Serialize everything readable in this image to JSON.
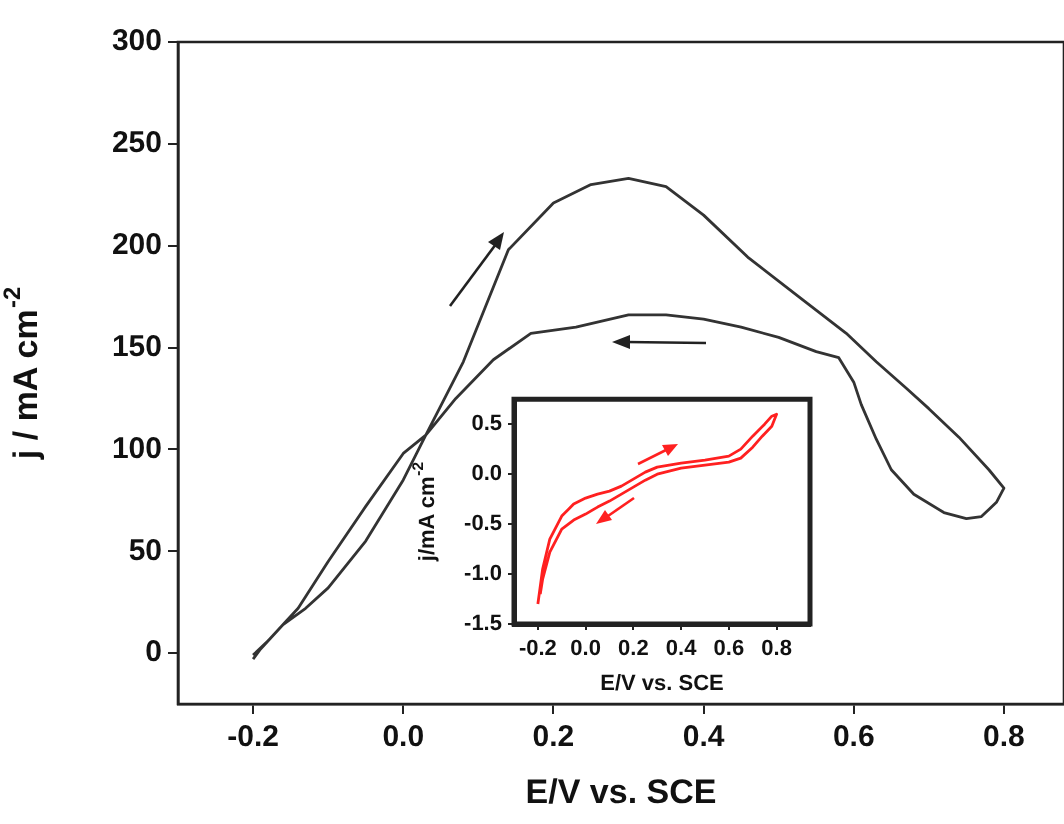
{
  "chart_data": [
    {
      "type": "line",
      "xlabel": "E/V vs. SCE",
      "ylabel": "j / mA cm$^{-2}$",
      "marker": "none",
      "xlim": [
        -0.3,
        0.88
      ],
      "ylim": [
        -25,
        300
      ],
      "xticks": [
        -0.2,
        {
          "value": 0,
          "label": "0.0"
        },
        0.2,
        0.4,
        0.6,
        0.8
      ],
      "yticks": [
        0,
        50,
        100,
        150,
        200,
        250,
        300
      ],
      "series": [
        {
          "color": "#333333",
          "x": [
            -0.2,
            -0.19,
            -0.16,
            -0.13,
            -0.1,
            -0.05,
            0.0,
            0.03,
            0.08,
            0.14,
            0.2,
            0.25,
            0.3,
            0.35,
            0.4,
            0.46,
            0.53,
            0.59,
            0.63,
            0.67,
            0.7,
            0.74,
            0.78,
            0.8,
            0.79,
            0.77,
            0.75,
            0.72,
            0.68,
            0.65,
            0.63,
            0.61,
            0.6,
            0.58,
            0.55,
            0.5,
            0.45,
            0.4,
            0.35,
            0.3,
            0.23,
            0.17,
            0.12,
            0.07,
            0.03,
            0.0,
            -0.05,
            -0.1,
            -0.14,
            -0.16,
            -0.18,
            -0.2
          ],
          "values": [
            -3,
            2,
            14,
            22,
            32,
            55,
            85,
            107,
            143,
            198,
            221,
            230,
            233,
            229,
            215,
            194,
            174,
            157,
            143,
            130,
            120,
            106,
            90,
            81,
            74,
            67,
            66,
            69,
            78,
            90,
            105,
            122,
            133,
            145,
            148,
            155,
            160,
            164,
            166,
            166,
            160,
            157,
            144,
            125,
            107,
            98,
            72,
            45,
            22,
            14,
            6,
            -1
          ]
        }
      ]
    },
    {
      "type": "line",
      "xlabel": "E/V vs. SCE",
      "ylabel": "j/mA cm$^{-2}$",
      "marker": "none",
      "xlim": [
        -0.3,
        0.94
      ],
      "ylim": [
        -1.5,
        0.75
      ],
      "xticks": [
        -0.2,
        {
          "value": 0,
          "label": "0.0"
        },
        0.2,
        0.4,
        0.6,
        0.8
      ],
      "yticks": [
        -1.5,
        {
          "value": -1,
          "label": "-1.0"
        },
        -0.5,
        {
          "value": 0,
          "label": "0.0"
        },
        0.5
      ],
      "series": [
        {
          "color": "#ff2020",
          "x": [
            -0.2,
            -0.18,
            -0.15,
            -0.1,
            -0.05,
            0.0,
            0.05,
            0.1,
            0.15,
            0.2,
            0.25,
            0.3,
            0.4,
            0.5,
            0.6,
            0.65,
            0.7,
            0.75,
            0.78,
            0.8,
            0.78,
            0.74,
            0.7,
            0.65,
            0.6,
            0.5,
            0.4,
            0.3,
            0.25,
            0.2,
            0.15,
            0.1,
            0.05,
            0.0,
            -0.05,
            -0.1,
            -0.15,
            -0.18,
            -0.19
          ],
          "values": [
            -1.3,
            -0.95,
            -0.65,
            -0.42,
            -0.3,
            -0.24,
            -0.2,
            -0.17,
            -0.12,
            -0.05,
            0.02,
            0.07,
            0.11,
            0.14,
            0.18,
            0.25,
            0.38,
            0.5,
            0.58,
            0.6,
            0.48,
            0.38,
            0.27,
            0.16,
            0.12,
            0.09,
            0.06,
            0.0,
            -0.06,
            -0.13,
            -0.2,
            -0.27,
            -0.33,
            -0.4,
            -0.46,
            -0.55,
            -0.78,
            -1.05,
            -1.2
          ]
        }
      ]
    }
  ]
}
